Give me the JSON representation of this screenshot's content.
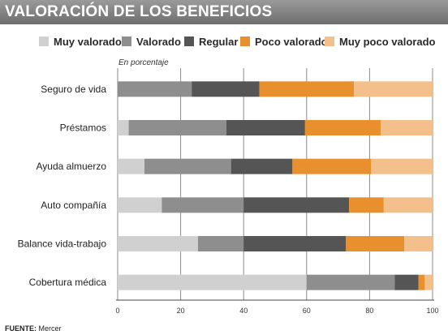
{
  "header": {
    "title": "VALORACIÓN DE LOS BENEFICIOS"
  },
  "note": "En porcentaje",
  "source": {
    "label": "FUENTE:",
    "value": "Mercer"
  },
  "chart_data": {
    "type": "bar",
    "orientation": "horizontal",
    "stacked": true,
    "categories": [
      "Seguro de vida",
      "Préstamos",
      "Ayuda almuerzo",
      "Auto compañía",
      "Balance vida-trabajo",
      "Cobertura médica"
    ],
    "series": [
      {
        "name": "Muy valorado",
        "color": "#d0d0d0",
        "values": [
          0,
          3.5,
          8.5,
          14,
          25.5,
          60
        ]
      },
      {
        "name": "Valorado",
        "color": "#8e8e8e",
        "values": [
          23.5,
          31,
          27.5,
          26,
          14.5,
          28
        ]
      },
      {
        "name": "Regular",
        "color": "#555555",
        "values": [
          21.5,
          25,
          19.5,
          33.5,
          32.5,
          7.5
        ]
      },
      {
        "name": "Poco valorado",
        "color": "#e8902e",
        "values": [
          30,
          24,
          25,
          11,
          18.5,
          2
        ]
      },
      {
        "name": "Muy poco valorado",
        "color": "#f3bf8a",
        "values": [
          25,
          16.5,
          19.5,
          15.5,
          9,
          2.5
        ]
      }
    ],
    "xlim": [
      0,
      100
    ],
    "xticks": [
      "0",
      "20",
      "40",
      "60",
      "80",
      "100"
    ],
    "grid": true,
    "legend": "top"
  }
}
